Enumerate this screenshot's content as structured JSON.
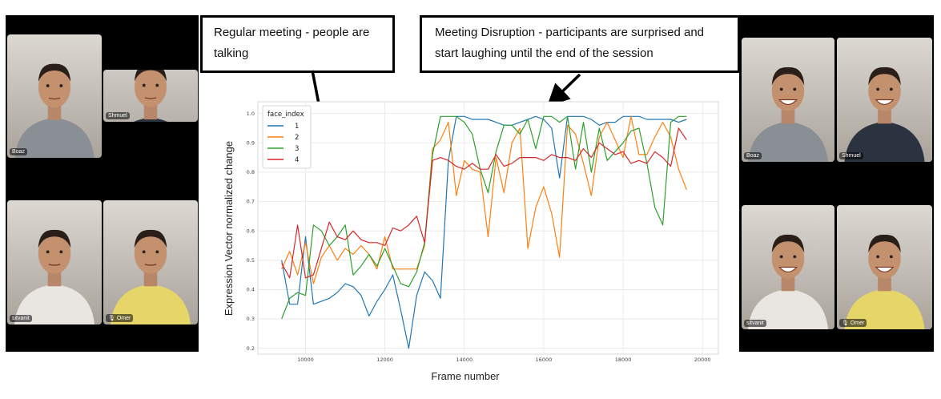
{
  "callouts": {
    "left": "Regular meeting - people are talking",
    "right": "Meeting Disruption - participants are surprised and start laughing until the end of the session"
  },
  "video_before": {
    "participants": [
      {
        "name": "Boaz",
        "mood": "neutral",
        "active": false,
        "shirt": "#8a8f96"
      },
      {
        "name": "Shmuel",
        "mood": "neutral",
        "active": false,
        "shirt": "#2b3340"
      },
      {
        "name": "sitvanit",
        "mood": "neutral",
        "active": true,
        "shirt": "#e9e6e2"
      },
      {
        "name": "Omer",
        "mood": "neutral",
        "active": false,
        "shirt": "#e6d66a",
        "mic_icon": "microphone-icon"
      }
    ]
  },
  "video_after": {
    "participants": [
      {
        "name": "Boaz",
        "mood": "laughing",
        "active": false,
        "shirt": "#8a8f96"
      },
      {
        "name": "Shmuel",
        "mood": "laughing",
        "active": true,
        "shirt": "#2b3340"
      },
      {
        "name": "sitvanit",
        "mood": "laughing",
        "active": false,
        "shirt": "#e9e6e2"
      },
      {
        "name": "Omer",
        "mood": "laughing",
        "active": false,
        "shirt": "#e6d66a",
        "mic_icon": "microphone-icon"
      }
    ]
  },
  "chart_data": {
    "type": "line",
    "xlabel": "Frame number",
    "ylabel": "Expression Vector normalized change",
    "xlim": [
      8800,
      20400
    ],
    "ylim": [
      0.18,
      1.04
    ],
    "xticks": [
      10000,
      12000,
      14000,
      16000,
      18000,
      20000
    ],
    "yticks": [
      0.2,
      0.3,
      0.4,
      0.5,
      0.6,
      0.7,
      0.8,
      0.9,
      1.0
    ],
    "grid": true,
    "legend": {
      "title": "face_index",
      "placement": "top-left"
    },
    "x": [
      9400,
      9600,
      9800,
      10000,
      10200,
      10400,
      10600,
      10800,
      11000,
      11200,
      11400,
      11600,
      11800,
      12000,
      12200,
      12400,
      12600,
      12800,
      13000,
      13200,
      13400,
      13600,
      13800,
      14000,
      14200,
      14400,
      14600,
      14800,
      15000,
      15200,
      15400,
      15600,
      15800,
      16000,
      16200,
      16400,
      16600,
      16800,
      17000,
      17200,
      17400,
      17600,
      17800,
      18000,
      18200,
      18400,
      18600,
      18800,
      19000,
      19200,
      19400,
      19600
    ],
    "series": [
      {
        "name": "1",
        "color": "#1f77b4",
        "values": [
          0.5,
          0.35,
          0.35,
          0.58,
          0.35,
          0.36,
          0.37,
          0.39,
          0.42,
          0.41,
          0.38,
          0.31,
          0.36,
          0.4,
          0.45,
          0.33,
          0.2,
          0.38,
          0.46,
          0.43,
          0.37,
          0.84,
          0.99,
          0.99,
          0.98,
          0.98,
          0.98,
          0.97,
          0.96,
          0.96,
          0.97,
          0.98,
          0.99,
          0.98,
          0.95,
          0.78,
          0.99,
          0.99,
          0.99,
          0.98,
          0.96,
          0.97,
          0.97,
          0.99,
          0.99,
          0.99,
          0.98,
          0.98,
          0.98,
          0.98,
          0.97,
          0.98
        ]
      },
      {
        "name": "2",
        "color": "#ff7f0e",
        "values": [
          0.47,
          0.53,
          0.45,
          0.56,
          0.42,
          0.51,
          0.55,
          0.5,
          0.54,
          0.52,
          0.55,
          0.52,
          0.47,
          0.58,
          0.47,
          0.47,
          0.47,
          0.47,
          0.55,
          0.88,
          0.91,
          0.97,
          0.72,
          0.84,
          0.81,
          0.8,
          0.58,
          0.85,
          0.73,
          0.9,
          0.95,
          0.54,
          0.68,
          0.75,
          0.66,
          0.51,
          0.96,
          0.93,
          0.83,
          0.72,
          0.92,
          0.97,
          0.91,
          0.85,
          0.99,
          0.86,
          0.86,
          0.92,
          0.97,
          0.92,
          0.81,
          0.74
        ]
      },
      {
        "name": "3",
        "color": "#2ca02c",
        "values": [
          0.3,
          0.37,
          0.39,
          0.38,
          0.62,
          0.6,
          0.55,
          0.58,
          0.62,
          0.45,
          0.48,
          0.52,
          0.48,
          0.54,
          0.48,
          0.42,
          0.41,
          0.46,
          0.56,
          0.86,
          0.99,
          0.99,
          0.99,
          0.97,
          0.93,
          0.81,
          0.73,
          0.87,
          0.96,
          0.96,
          0.93,
          0.98,
          0.88,
          0.99,
          0.99,
          0.97,
          0.99,
          0.81,
          0.97,
          0.8,
          0.95,
          0.84,
          0.87,
          0.9,
          0.94,
          0.95,
          0.83,
          0.68,
          0.62,
          0.97,
          0.99,
          0.99
        ]
      },
      {
        "name": "4",
        "color": "#d62728",
        "values": [
          0.49,
          0.44,
          0.62,
          0.44,
          0.45,
          0.54,
          0.63,
          0.58,
          0.57,
          0.6,
          0.57,
          0.56,
          0.56,
          0.55,
          0.61,
          0.6,
          0.62,
          0.65,
          0.56,
          0.84,
          0.85,
          0.84,
          0.82,
          0.81,
          0.83,
          0.81,
          0.81,
          0.86,
          0.82,
          0.83,
          0.85,
          0.85,
          0.85,
          0.84,
          0.86,
          0.85,
          0.85,
          0.84,
          0.88,
          0.85,
          0.9,
          0.88,
          0.86,
          0.87,
          0.83,
          0.84,
          0.83,
          0.87,
          0.85,
          0.82,
          0.95,
          0.91
        ]
      }
    ]
  }
}
